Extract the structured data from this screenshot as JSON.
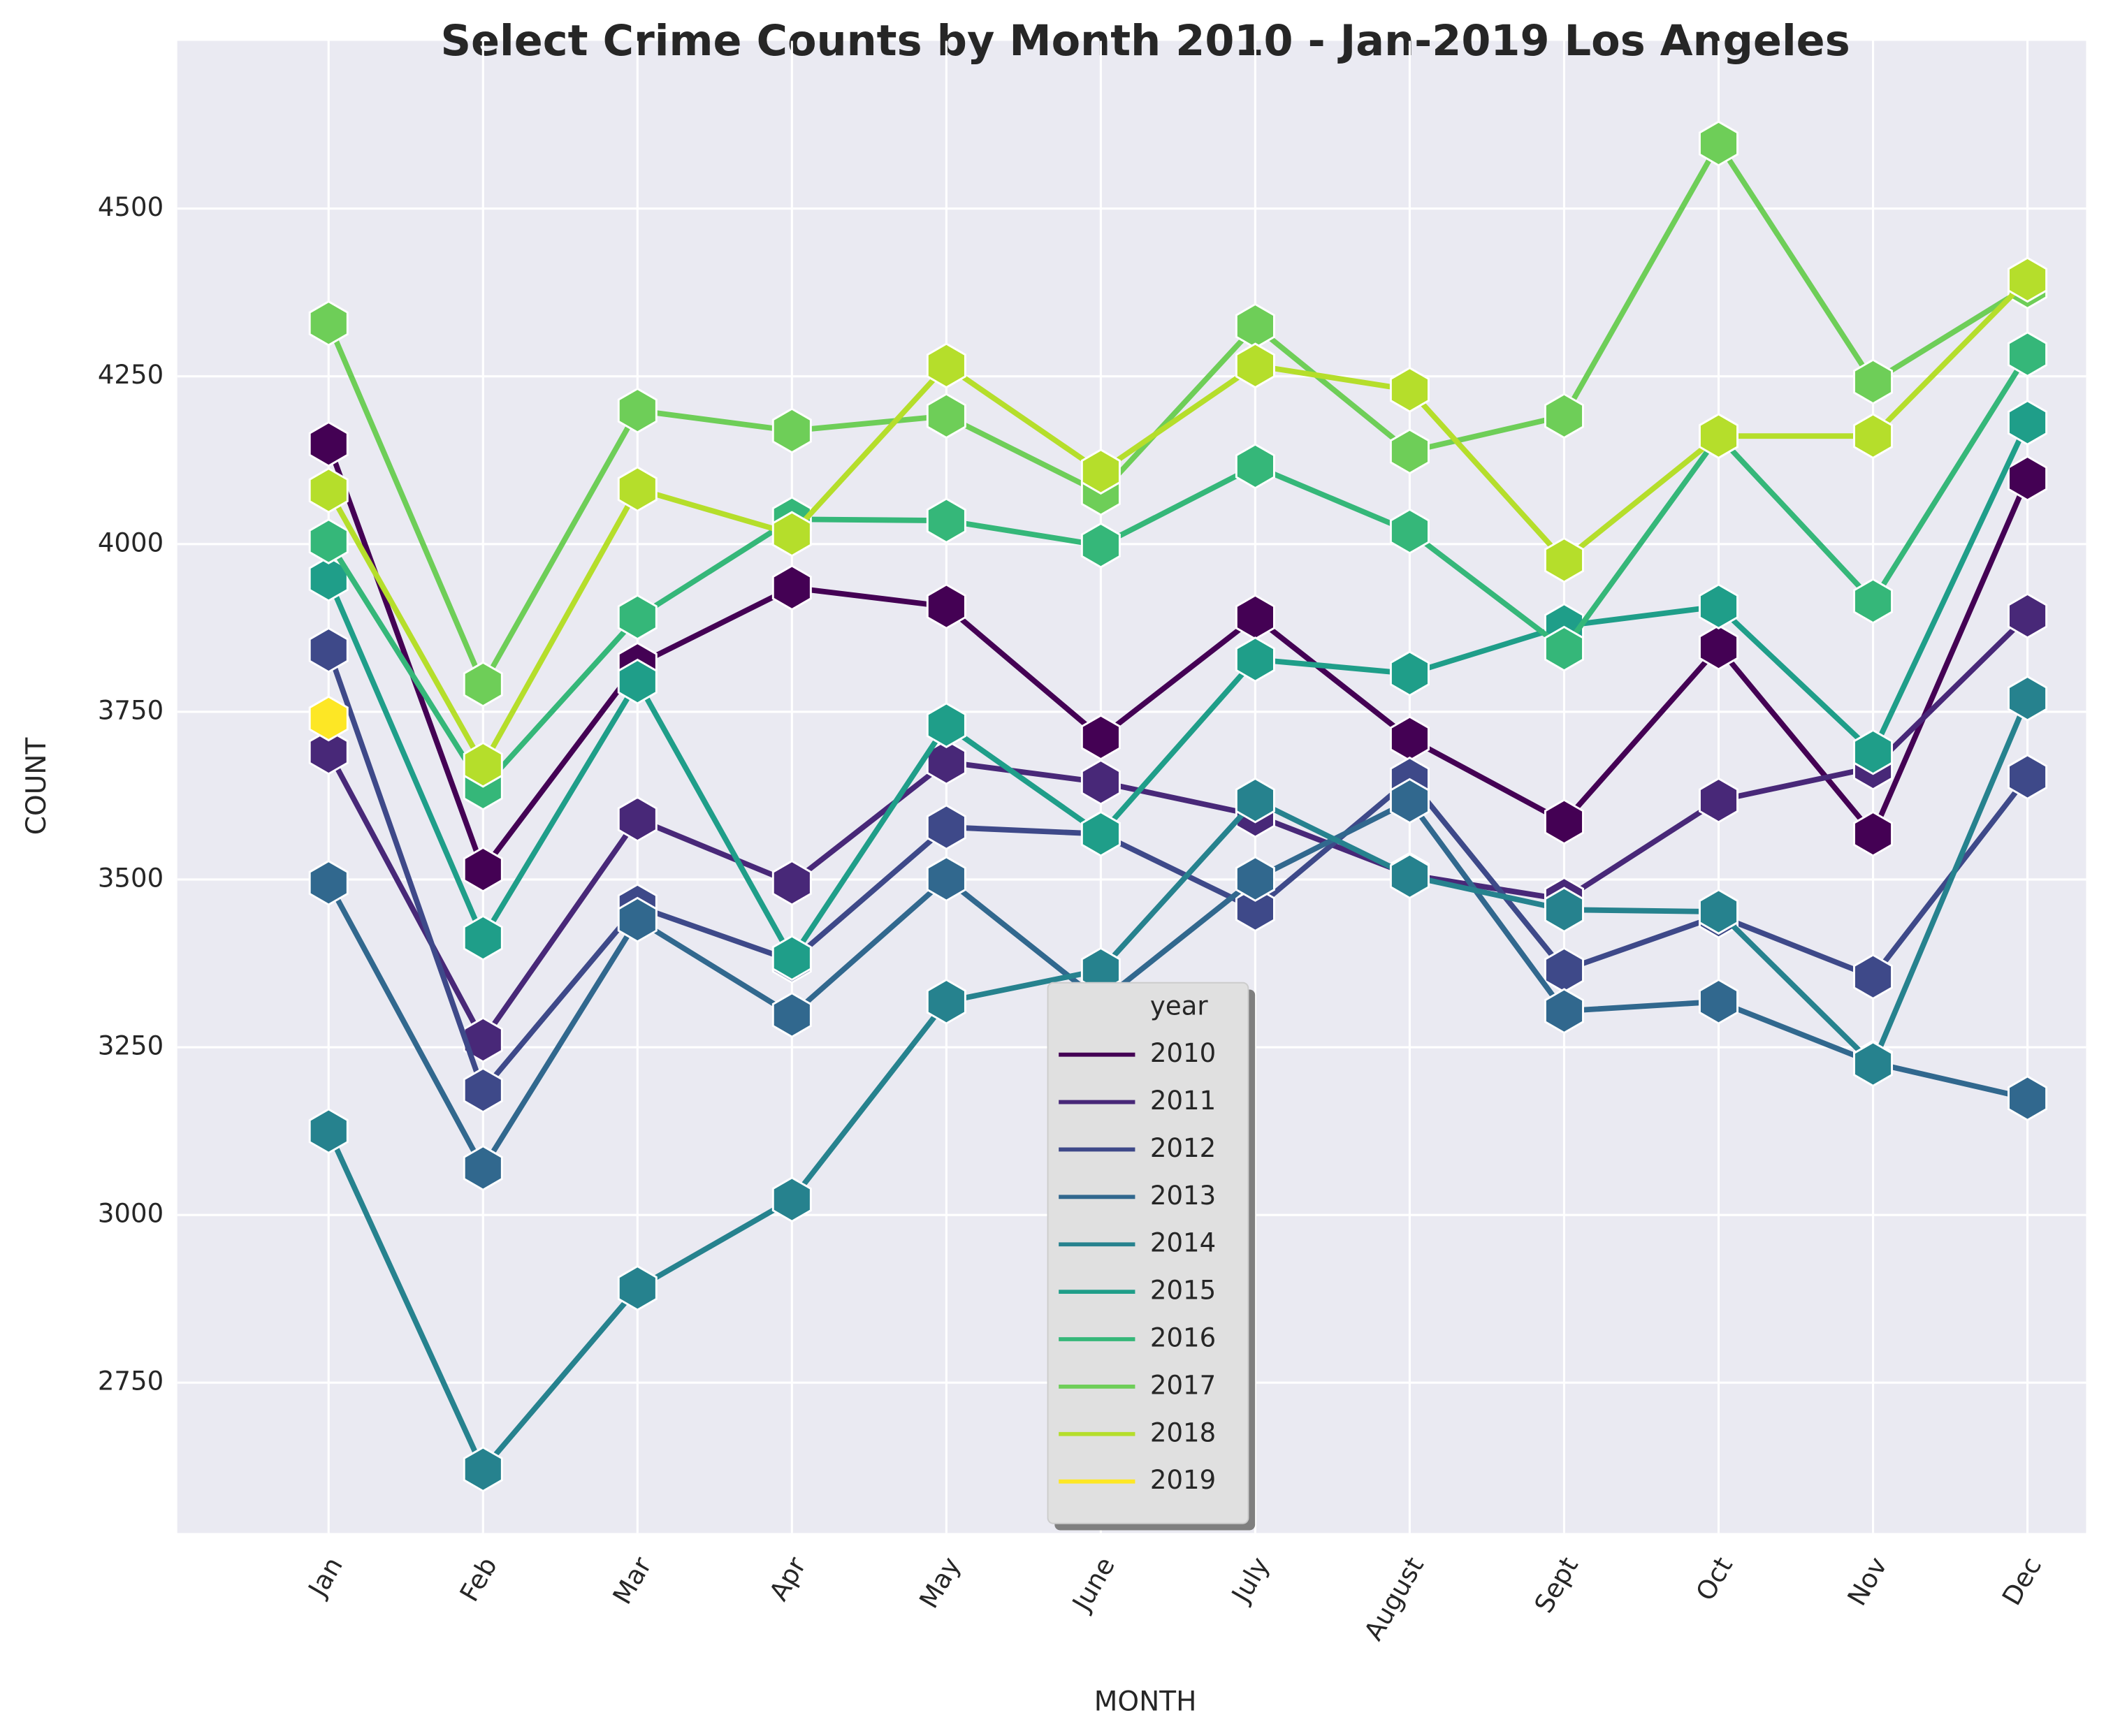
{
  "chart_data": {
    "type": "line",
    "title": "Select Crime Counts by Month 2010 - Jan-2019 Los Angeles",
    "xlabel": "MONTH",
    "ylabel": "COUNT",
    "legend_title": "year",
    "legend_loc": "lower center",
    "grid": true,
    "ylim": [
      2526,
      4750
    ],
    "yticks": [
      2750,
      3000,
      3250,
      3500,
      3750,
      4000,
      4250,
      4500
    ],
    "categories": [
      "Jan",
      "Feb",
      "Mar",
      "Apr",
      "May",
      "June",
      "July",
      "August",
      "Sept",
      "Oct",
      "Nov",
      "Dec"
    ],
    "series": [
      {
        "name": "2010",
        "color": "#440154",
        "values": [
          4149,
          3515,
          3820,
          3935,
          3907,
          3712,
          3891,
          3710,
          3586,
          3846,
          3568,
          4098
        ]
      },
      {
        "name": "2011",
        "color": "#482878",
        "values": [
          3690,
          3261,
          3590,
          3495,
          3675,
          3645,
          3596,
          3507,
          3470,
          3618,
          3667,
          3893
        ]
      },
      {
        "name": "2012",
        "color": "#3e4989",
        "values": [
          3842,
          3186,
          3460,
          3379,
          3578,
          3568,
          3456,
          3649,
          3365,
          3446,
          3355,
          3653
        ]
      },
      {
        "name": "2013",
        "color": "#31688e",
        "values": [
          3495,
          3070,
          3440,
          3298,
          3501,
          3318,
          3501,
          3617,
          3304,
          3318,
          3227,
          3174
        ]
      },
      {
        "name": "2014",
        "color": "#26828e",
        "values": [
          3125,
          2621,
          2891,
          3023,
          3318,
          3365,
          3618,
          3505,
          3455,
          3452,
          3225,
          3770
        ]
      },
      {
        "name": "2015",
        "color": "#1f9e89",
        "values": [
          3948,
          3413,
          3795,
          3383,
          3730,
          3568,
          3828,
          3807,
          3878,
          3907,
          3690,
          4181
        ]
      },
      {
        "name": "2016",
        "color": "#35b779",
        "values": [
          4004,
          3637,
          3891,
          4037,
          4035,
          3998,
          4116,
          4019,
          3844,
          4161,
          3915,
          4283
        ]
      },
      {
        "name": "2017",
        "color": "#6ece58",
        "values": [
          4329,
          3791,
          4199,
          4169,
          4191,
          4076,
          4325,
          4138,
          4191,
          4597,
          4242,
          4384
        ]
      },
      {
        "name": "2018",
        "color": "#b5de2b",
        "values": [
          4080,
          3671,
          4082,
          4015,
          4266,
          4108,
          4266,
          4230,
          3976,
          4161,
          4161,
          4394
        ]
      },
      {
        "name": "2019",
        "color": "#fde725",
        "values": [
          3740,
          null,
          null,
          null,
          null,
          null,
          null,
          null,
          null,
          null,
          null,
          null
        ]
      }
    ]
  }
}
